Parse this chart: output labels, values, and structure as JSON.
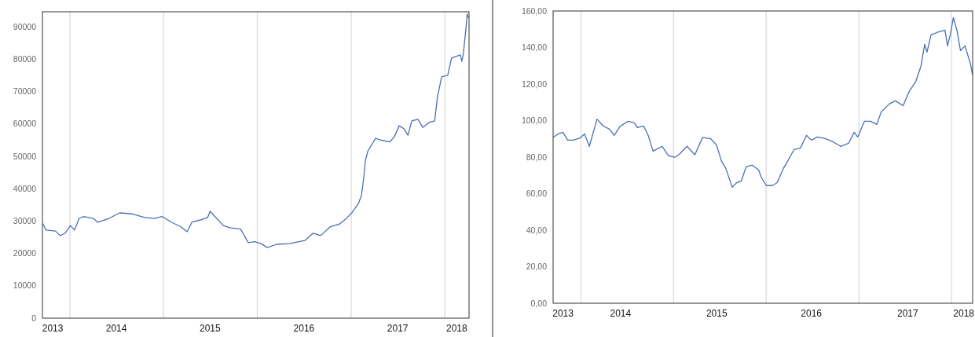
{
  "chart_data": [
    {
      "type": "line",
      "x": [
        "2013-09-18",
        "2013-09-30",
        "2013-11-06",
        "2013-11-24",
        "2013-12-13",
        "2014-01-03",
        "2014-01-19",
        "2014-02-06",
        "2014-02-24",
        "2014-04-02",
        "2014-04-20",
        "2014-06-02",
        "2014-07-14",
        "2014-09-01",
        "2014-10-20",
        "2014-11-26",
        "2014-12-26",
        "2015-02-01",
        "2015-03-10",
        "2015-04-03",
        "2015-04-21",
        "2015-05-28",
        "2015-06-22",
        "2015-07-01",
        "2015-07-16",
        "2015-08-22",
        "2015-09-15",
        "2015-10-28",
        "2015-11-27",
        "2015-12-22",
        "2016-01-15",
        "2016-02-09",
        "2016-03-16",
        "2016-05-05",
        "2016-07-05",
        "2016-08-05",
        "2016-09-04",
        "2016-10-11",
        "2016-11-17",
        "2016-12-11",
        "2017-01-05",
        "2017-01-29",
        "2017-02-10",
        "2017-02-20",
        "2017-02-25",
        "2017-03-07",
        "2017-04-06",
        "2017-04-25",
        "2017-05-31",
        "2017-06-18",
        "2017-07-07",
        "2017-07-25",
        "2017-08-10",
        "2017-08-25",
        "2017-09-18",
        "2017-10-07",
        "2017-10-31",
        "2017-11-22",
        "2017-12-03",
        "2017-12-19",
        "2018-01-12",
        "2018-01-27",
        "2018-03-02",
        "2018-03-08",
        "2018-03-14",
        "2018-03-24",
        "2018-03-29",
        "2018-04-02"
      ],
      "series": [
        {
          "color": "#4a6fb5",
          "values": [
            29100,
            27200,
            26900,
            25500,
            26200,
            28600,
            27200,
            30800,
            31400,
            30800,
            29600,
            30800,
            32500,
            32200,
            31100,
            30800,
            31400,
            29600,
            28200,
            26700,
            29600,
            30400,
            31100,
            33000,
            31700,
            28600,
            27900,
            27500,
            23300,
            23600,
            23000,
            21800,
            22800,
            23000,
            24000,
            26200,
            25500,
            28200,
            29100,
            30600,
            32700,
            35400,
            37900,
            44200,
            48700,
            51600,
            55500,
            55000,
            54400,
            56000,
            59400,
            58500,
            56500,
            60900,
            61400,
            58900,
            60400,
            60900,
            68200,
            74500,
            75000,
            80300,
            81300,
            79300,
            81700,
            89500,
            93900,
            92900
          ]
        }
      ],
      "xlim": [
        "2013-09-16",
        "2018-04-05"
      ],
      "ylim": [
        0,
        94600
      ],
      "xticks": [
        {
          "value": "2013-10-26",
          "label": "2013"
        },
        {
          "value": "2014-07-01",
          "label": "2014"
        },
        {
          "value": "2015-07-01",
          "label": "2015"
        },
        {
          "value": "2016-07-01",
          "label": "2016"
        },
        {
          "value": "2017-07-01",
          "label": "2017"
        },
        {
          "value": "2018-02-16",
          "label": "2018"
        }
      ],
      "yticks": [
        0,
        10000,
        20000,
        30000,
        40000,
        50000,
        60000,
        70000,
        80000,
        90000
      ],
      "ref_lines": [
        {
          "axis": "x",
          "value": "2014-01-01",
          "color": "#d9d9d9"
        },
        {
          "axis": "x",
          "value": "2015-01-01",
          "color": "#d9d9d9"
        },
        {
          "axis": "x",
          "value": "2016-01-01",
          "color": "#d9d9d9"
        },
        {
          "axis": "x",
          "value": "2017-01-01",
          "color": "#d9d9d9"
        },
        {
          "axis": "x",
          "value": "2018-01-01",
          "color": "#d9d9d9"
        }
      ]
    },
    {
      "type": "line",
      "x": [
        "2013-09-15",
        "2013-10-03",
        "2013-10-22",
        "2013-11-09",
        "2013-12-03",
        "2013-12-28",
        "2014-01-15",
        "2014-02-03",
        "2014-02-15",
        "2014-03-05",
        "2014-03-30",
        "2014-04-23",
        "2014-05-12",
        "2014-06-05",
        "2014-07-06",
        "2014-07-30",
        "2014-08-11",
        "2014-09-05",
        "2014-09-23",
        "2014-10-12",
        "2014-11-17",
        "2014-12-12",
        "2015-01-05",
        "2015-01-24",
        "2015-02-23",
        "2015-03-26",
        "2015-04-25",
        "2015-05-26",
        "2015-06-19",
        "2015-07-08",
        "2015-07-26",
        "2015-08-20",
        "2015-09-07",
        "2015-09-25",
        "2015-10-14",
        "2015-11-07",
        "2015-12-02",
        "2015-12-14",
        "2016-01-02",
        "2016-01-26",
        "2016-02-13",
        "2016-03-09",
        "2016-03-27",
        "2016-04-20",
        "2016-05-15",
        "2016-06-08",
        "2016-06-27",
        "2016-07-21",
        "2016-08-21",
        "2016-09-20",
        "2016-10-21",
        "2016-11-21",
        "2016-12-13",
        "2016-12-27",
        "2017-01-22",
        "2017-02-15",
        "2017-03-12",
        "2017-03-30",
        "2017-04-30",
        "2017-05-24",
        "2017-06-24",
        "2017-07-18",
        "2017-08-12",
        "2017-09-02",
        "2017-09-17",
        "2017-09-26",
        "2017-10-12",
        "2017-11-11",
        "2017-12-06",
        "2017-12-16",
        "2017-12-28",
        "2018-01-08",
        "2018-01-22",
        "2018-02-05",
        "2018-02-23",
        "2018-03-08",
        "2018-03-16",
        "2018-03-24"
      ],
      "series": [
        {
          "color": "#4a6fb5",
          "values": [
            91.0,
            92.7,
            93.6,
            89.3,
            89.3,
            90.5,
            92.7,
            85.9,
            91.9,
            100.8,
            97.0,
            95.3,
            91.9,
            97.0,
            99.6,
            98.8,
            96.2,
            97.0,
            91.9,
            83.3,
            85.9,
            80.7,
            79.9,
            81.6,
            85.9,
            81.3,
            90.7,
            90.2,
            86.7,
            78.1,
            73.8,
            63.5,
            66.0,
            66.9,
            74.7,
            75.6,
            73.0,
            68.6,
            64.4,
            64.4,
            66.0,
            73.8,
            78.1,
            84.1,
            85.0,
            91.9,
            89.3,
            91.0,
            90.2,
            88.4,
            85.9,
            87.6,
            93.6,
            91.0,
            99.6,
            99.6,
            97.9,
            104.8,
            109.1,
            110.8,
            108.2,
            116.0,
            121.1,
            129.7,
            141.8,
            137.5,
            146.9,
            148.6,
            149.5,
            140.9,
            147.8,
            156.4,
            149.5,
            138.3,
            140.9,
            134.9,
            131.4,
            125.4
          ]
        }
      ],
      "xlim": [
        "2013-09-13",
        "2018-03-25"
      ],
      "ylim": [
        0,
        160
      ],
      "xticks": [
        {
          "value": "2013-10-22",
          "label": "2013"
        },
        {
          "value": "2014-06-06",
          "label": "2014"
        },
        {
          "value": "2015-06-20",
          "label": "2015"
        },
        {
          "value": "2016-06-27",
          "label": "2016"
        },
        {
          "value": "2017-07-12",
          "label": "2017"
        },
        {
          "value": "2018-02-18",
          "label": "2018"
        }
      ],
      "yticks": [
        {
          "value": 0,
          "label": "0,00"
        },
        {
          "value": 20,
          "label": "20,00"
        },
        {
          "value": 40,
          "label": "40,00"
        },
        {
          "value": 60,
          "label": "60,00"
        },
        {
          "value": 80,
          "label": "80,00"
        },
        {
          "value": 100,
          "label": "100,00"
        },
        {
          "value": 120,
          "label": "120,00"
        },
        {
          "value": 140,
          "label": "140,00"
        },
        {
          "value": 160,
          "label": "160,00"
        }
      ],
      "ref_lines": [
        {
          "axis": "x",
          "value": "2014-01-01",
          "color": "#d9d9d9"
        },
        {
          "axis": "x",
          "value": "2015-01-01",
          "color": "#d9d9d9"
        },
        {
          "axis": "x",
          "value": "2016-01-01",
          "color": "#d9d9d9"
        },
        {
          "axis": "x",
          "value": "2017-01-01",
          "color": "#d9d9d9"
        },
        {
          "axis": "x",
          "value": "2018-01-01",
          "color": "#d9d9d9"
        }
      ]
    }
  ]
}
